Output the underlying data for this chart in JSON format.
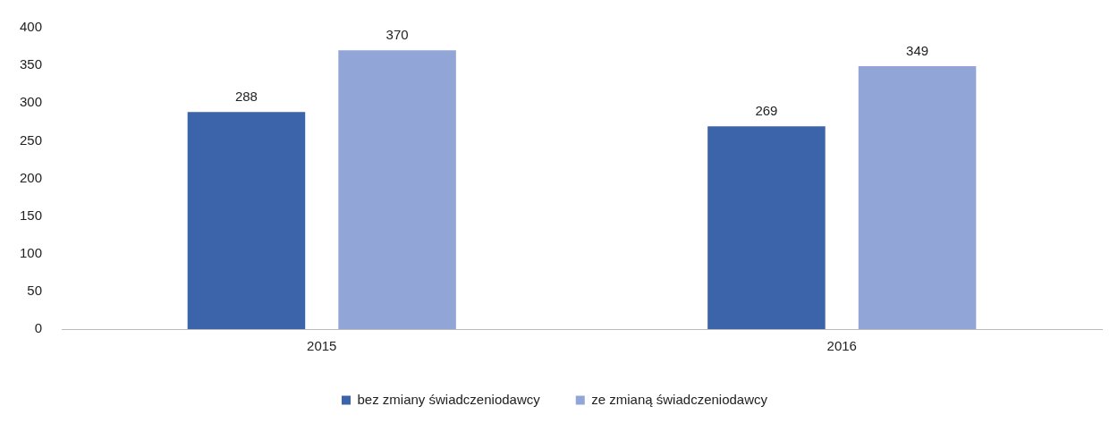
{
  "chart_data": {
    "type": "bar",
    "categories": [
      "2015",
      "2016"
    ],
    "series": [
      {
        "name": "bez zmiany świadczeniodawcy",
        "color": "#3c64ab",
        "values": [
          288,
          269
        ]
      },
      {
        "name": "ze zmianą świadczeniodawcy",
        "color": "#91a5d6",
        "values": [
          370,
          349
        ]
      }
    ],
    "ylim": [
      0,
      400
    ],
    "yticks": [
      0,
      50,
      100,
      150,
      200,
      250,
      300,
      350,
      400
    ],
    "grid": false,
    "legend": "bottom",
    "data_labels": true
  }
}
